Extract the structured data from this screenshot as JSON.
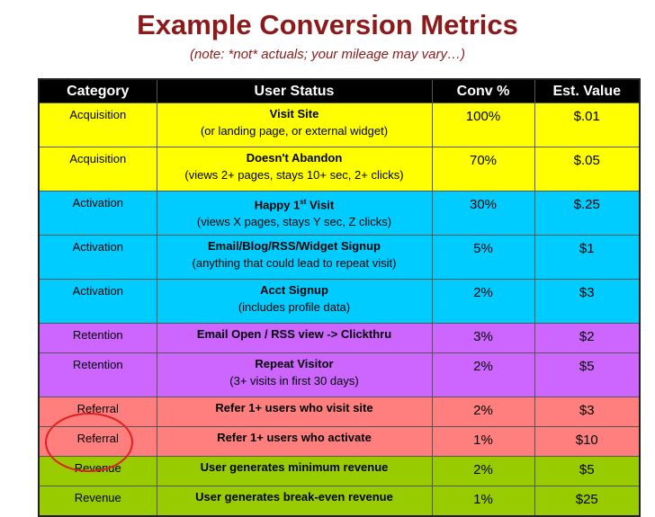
{
  "title": "Example Conversion Metrics",
  "subtitle": "(note: *not* actuals; your mileage may vary…)",
  "headers": [
    "Category",
    "User Status",
    "Conv %",
    "Est. Value"
  ],
  "colors": {
    "acquisition": "#ffff00",
    "activation": "#00ccff",
    "retention": "#cc66ff",
    "referral": "#ff7f7f",
    "revenue": "#99cc00",
    "annotation_circle": "#e02020"
  },
  "rows": [
    {
      "category": "Acquisition",
      "status": "Visit Site",
      "detail": "(or landing page, or external widget)",
      "conv": "100%",
      "value": "$.01"
    },
    {
      "category": "Acquisition",
      "status": "Doesn't Abandon",
      "detail": "(views 2+ pages, stays 10+ sec, 2+ clicks)",
      "conv": "70%",
      "value": "$.05"
    },
    {
      "category": "Activation",
      "status_pre": "Happy 1",
      "status_sup": "st",
      "status_post": " Visit",
      "detail": "(views X pages, stays Y sec, Z clicks)",
      "conv": "30%",
      "value": "$.25"
    },
    {
      "category": "Activation",
      "status": "Email/Blog/RSS/Widget Signup",
      "detail": "(anything that could lead to repeat visit)",
      "conv": "5%",
      "value": "$1"
    },
    {
      "category": "Activation",
      "status": "Acct Signup",
      "detail": "(includes profile data)",
      "conv": "2%",
      "value": "$3"
    },
    {
      "category": "Retention",
      "status": "Email Open / RSS view -> Clickthru",
      "conv": "3%",
      "value": "$2"
    },
    {
      "category": "Retention",
      "status": "Repeat Visitor",
      "detail": "(3+ visits in first 30 days)",
      "conv": "2%",
      "value": "$5"
    },
    {
      "category": "Referral",
      "status": "Refer 1+ users who visit site",
      "conv": "2%",
      "value": "$3"
    },
    {
      "category": "Referral",
      "status": "Refer 1+ users who activate",
      "conv": "1%",
      "value": "$10"
    },
    {
      "category": "Revenue",
      "status": "User generates minimum revenue",
      "conv": "2%",
      "value": "$5"
    },
    {
      "category": "Revenue",
      "status": "User generates break-even revenue",
      "conv": "1%",
      "value": "$25"
    }
  ]
}
